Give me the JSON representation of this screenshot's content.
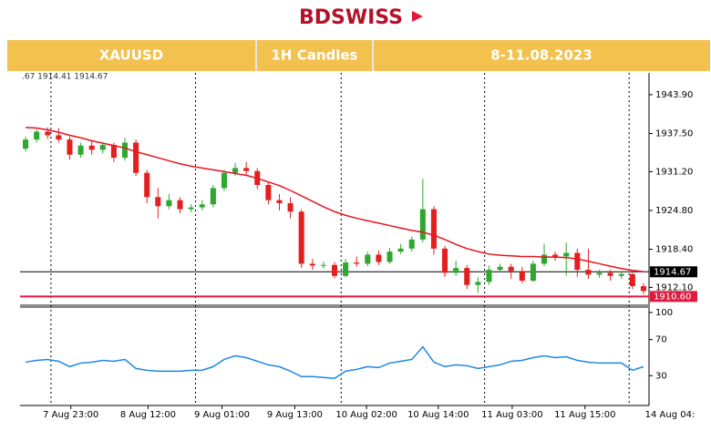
{
  "header": {
    "logo": "BDSWISS",
    "symbol": "XAUUSD",
    "timeframe": "1H Candles",
    "period": "8-11.08.2023"
  },
  "chart_data": {
    "type": "candlestick",
    "info_text": ".67 1914.41 1914.67",
    "up_color": "#2ea82e",
    "down_color": "#e32020",
    "xlim": [
      -0.5,
      56.5
    ],
    "xticks": [
      {
        "value": 4.1,
        "label": "7 Aug 23:00"
      },
      {
        "value": 11.1,
        "label": "8 Aug 12:00"
      },
      {
        "value": 17.8,
        "label": "9 Aug 01:00"
      },
      {
        "value": 24.4,
        "label": "9 Aug 13:00"
      },
      {
        "value": 30.9,
        "label": "10 Aug 02:00"
      },
      {
        "value": 37.4,
        "label": "10 Aug 14:00"
      },
      {
        "value": 44.1,
        "label": "11 Aug 03:00"
      },
      {
        "value": 50.7,
        "label": "11 Aug 15:00"
      },
      {
        "value": 58.4,
        "label": "14 Aug 04:"
      }
    ],
    "separators": [
      2.3,
      15.4,
      28.6,
      41.6,
      54.7
    ],
    "ylim": [
      1909.3,
      1947.5
    ],
    "yticks": [
      {
        "value": 1943.9,
        "label": "1943.90"
      },
      {
        "value": 1937.5,
        "label": "1937.50"
      },
      {
        "value": 1931.2,
        "label": "1931.20"
      },
      {
        "value": 1924.8,
        "label": "1924.80"
      },
      {
        "value": 1918.4,
        "label": "1918.40"
      },
      {
        "value": 1912.1,
        "label": "1912.10"
      }
    ],
    "open": [
      1935,
      1936.5,
      1937.8,
      1937.2,
      1936.5,
      1934,
      1935.5,
      1934.8,
      1935.6,
      1933.5,
      1936,
      1931,
      1927,
      1925.5,
      1926.5,
      1925,
      1925.3,
      1925.8,
      1928.5,
      1931,
      1931.8,
      1931.3,
      1929,
      1926.5,
      1926,
      1924.6,
      1916,
      1915.7,
      1915.8,
      1914,
      1916.2,
      1916,
      1917.5,
      1916.3,
      1918,
      1918.5,
      1920,
      1925,
      1918.5,
      1914.5,
      1915.3,
      1912.5,
      1913,
      1915,
      1915.5,
      1914.8,
      1913.2,
      1916,
      1917.5,
      1917.2,
      1917.8,
      1915,
      1914.2,
      1914.5,
      1914,
      1914.3,
      1912.3
    ],
    "high": [
      1937,
      1938.2,
      1938.5,
      1938.4,
      1937,
      1936,
      1936.2,
      1936,
      1936,
      1936.8,
      1936.5,
      1931.5,
      1928.5,
      1927.5,
      1927,
      1925.8,
      1926.5,
      1929,
      1931.5,
      1932.6,
      1932.8,
      1931.8,
      1929.5,
      1927.5,
      1927,
      1925,
      1916.8,
      1916.4,
      1916.3,
      1916.8,
      1917.2,
      1918,
      1918.2,
      1918.6,
      1919.3,
      1920.5,
      1930,
      1925.5,
      1919,
      1916.5,
      1915.8,
      1913.8,
      1915.7,
      1916,
      1916,
      1915.5,
      1916.5,
      1919.3,
      1918,
      1919.5,
      1918.5,
      1918.5,
      1915,
      1915,
      1914.8,
      1914.5,
      1912.8
    ],
    "low": [
      1934.5,
      1936,
      1936.6,
      1936,
      1933.2,
      1933.5,
      1934,
      1934.2,
      1932.8,
      1933,
      1930.5,
      1926,
      1923.5,
      1925,
      1924.3,
      1924.5,
      1924.8,
      1925.3,
      1928,
      1930.5,
      1930.6,
      1928.3,
      1925.8,
      1924.8,
      1923.5,
      1915.3,
      1915,
      1915.2,
      1913.6,
      1913.8,
      1915.5,
      1915.6,
      1915.8,
      1916,
      1917.6,
      1918,
      1919.5,
      1917.5,
      1913.8,
      1914,
      1911.8,
      1911.2,
      1912.5,
      1914.6,
      1913.5,
      1912.8,
      1913,
      1915.6,
      1916.5,
      1914,
      1913.8,
      1913.5,
      1913.7,
      1913.2,
      1913.5,
      1911.8,
      1911
    ],
    "close": [
      1936.5,
      1937.8,
      1937.2,
      1936.5,
      1934,
      1935.5,
      1934.8,
      1935.6,
      1933.5,
      1936,
      1931,
      1927,
      1925.5,
      1926.5,
      1925,
      1925.3,
      1925.8,
      1928.5,
      1931,
      1931.8,
      1931.3,
      1929,
      1926.5,
      1926,
      1924.6,
      1916,
      1915.7,
      1915.8,
      1914,
      1916.2,
      1916,
      1917.5,
      1916.3,
      1918,
      1918.5,
      1920,
      1925,
      1918.5,
      1914.5,
      1915.3,
      1912.5,
      1913,
      1915,
      1915.5,
      1914.8,
      1913.2,
      1916,
      1917.5,
      1917.2,
      1917.8,
      1915,
      1914.2,
      1914.5,
      1914,
      1914.3,
      1912.3,
      1911.5
    ],
    "moving_average": {
      "color": "#e8141e",
      "values": [
        1938.5,
        1938.4,
        1938.1,
        1937.7,
        1937.2,
        1936.8,
        1936.3,
        1935.9,
        1935.5,
        1935.1,
        1934.5,
        1934,
        1933.5,
        1933,
        1932.5,
        1932.1,
        1931.8,
        1931.5,
        1931.2,
        1930.9,
        1930.6,
        1930.1,
        1929.5,
        1928.9,
        1928.1,
        1927.2,
        1926.3,
        1925.4,
        1924.6,
        1924,
        1923.5,
        1923.1,
        1922.7,
        1922.3,
        1921.9,
        1921.5,
        1921.2,
        1920.7,
        1920,
        1919.2,
        1918.5,
        1918,
        1917.6,
        1917.4,
        1917.3,
        1917.2,
        1917.2,
        1917.1,
        1917.1,
        1917,
        1916.8,
        1916.4,
        1916,
        1915.6,
        1915.2,
        1914.9,
        1914.7
      ]
    },
    "levels": [
      {
        "value": 1914.67,
        "label": "1914.67",
        "color": "#000000"
      },
      {
        "value": 1910.6,
        "label": "1910.60",
        "color": "#e0193f"
      }
    ],
    "indicator": {
      "color": "#1e88e5",
      "ylim": [
        -3,
        105
      ],
      "yticks": [
        100,
        70,
        30
      ],
      "values": [
        45,
        47,
        48,
        46,
        40,
        44,
        45,
        47,
        46,
        48,
        38,
        36,
        35,
        35,
        35,
        36,
        36,
        40,
        48,
        52,
        50,
        46,
        42,
        40,
        35,
        29,
        29,
        28,
        27,
        35,
        37,
        40,
        39,
        44,
        46,
        48,
        62,
        45,
        40,
        42,
        41,
        38,
        40,
        42,
        46,
        47,
        50,
        52,
        50,
        51,
        47,
        45,
        44,
        44,
        44,
        36,
        40
      ]
    }
  }
}
